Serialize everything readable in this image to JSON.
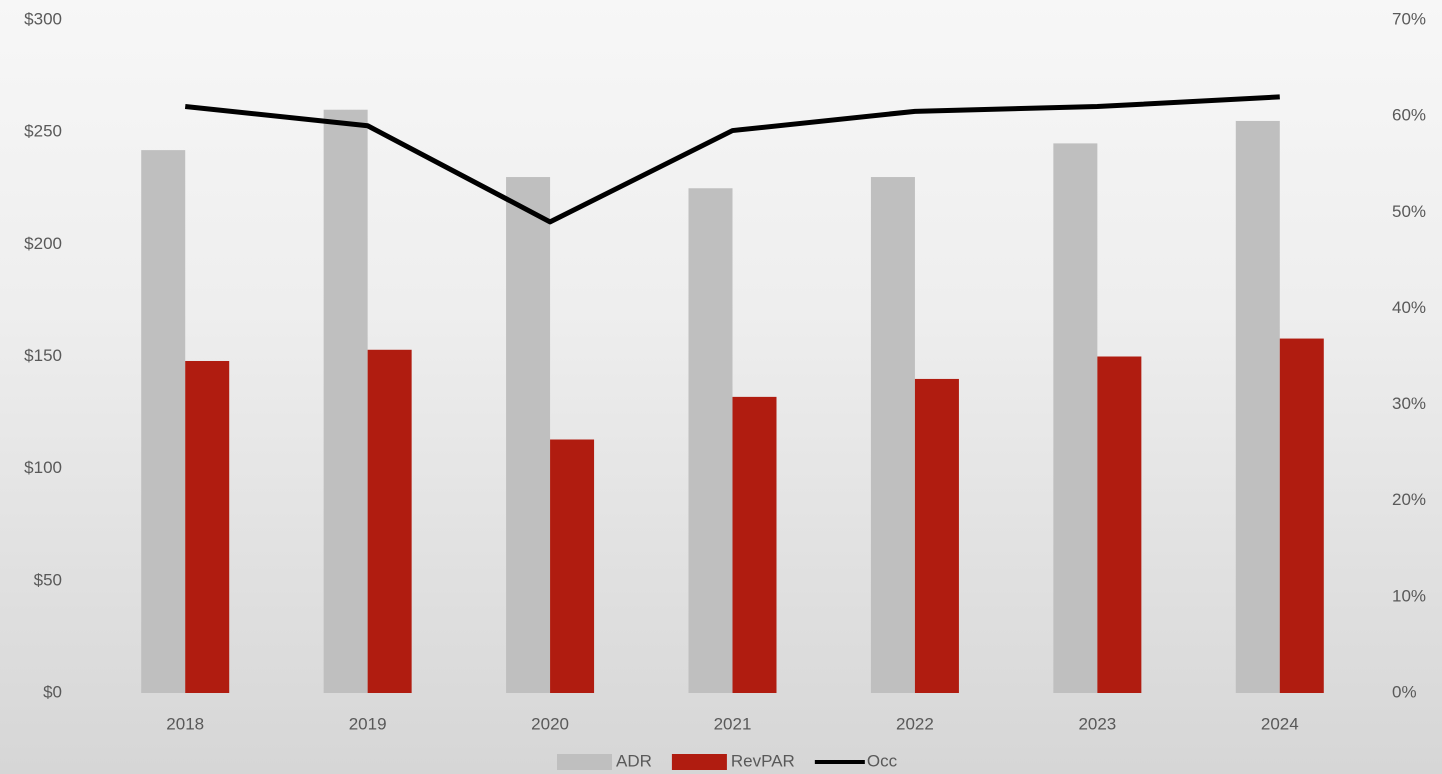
{
  "chart_data": {
    "type": "bar_line",
    "categories": [
      "2018",
      "2019",
      "2020",
      "2021",
      "2022",
      "2023",
      "2024"
    ],
    "series": [
      {
        "name": "ADR",
        "color": "#bfbfbf",
        "type": "bar",
        "values": [
          242,
          260,
          230,
          225,
          230,
          245,
          255
        ]
      },
      {
        "name": "RevPAR",
        "color": "#b01c10",
        "type": "bar",
        "values": [
          148,
          153,
          113,
          132,
          140,
          150,
          158
        ]
      },
      {
        "name": "Occ",
        "color": "#000000",
        "type": "line",
        "axis": "y2",
        "values": [
          61,
          59,
          49,
          58.5,
          60.5,
          61,
          62
        ]
      }
    ],
    "ylim": [
      0,
      300
    ],
    "yticks": [
      {
        "value": 0,
        "label": "$0"
      },
      {
        "value": 50,
        "label": "$50"
      },
      {
        "value": 100,
        "label": "$100"
      },
      {
        "value": 150,
        "label": "$150"
      },
      {
        "value": 200,
        "label": "$200"
      },
      {
        "value": 250,
        "label": "$250"
      },
      {
        "value": 300,
        "label": "$300"
      }
    ],
    "y2lim": [
      0,
      70
    ],
    "y2ticks": [
      {
        "value": 0,
        "label": "0%"
      },
      {
        "value": 10,
        "label": "10%"
      },
      {
        "value": 20,
        "label": "20%"
      },
      {
        "value": 30,
        "label": "30%"
      },
      {
        "value": 40,
        "label": "40%"
      },
      {
        "value": 50,
        "label": "50%"
      },
      {
        "value": 60,
        "label": "60%"
      },
      {
        "value": 70,
        "label": "70%"
      }
    ],
    "legend": "bottom"
  }
}
